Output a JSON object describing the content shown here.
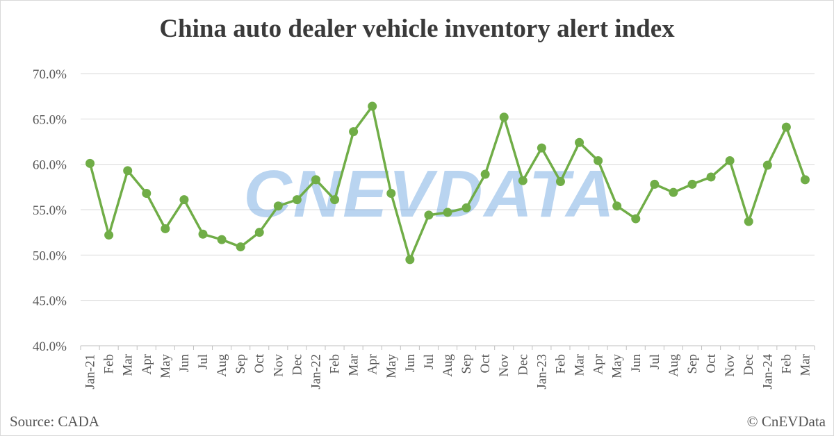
{
  "chart_data": {
    "type": "line",
    "title": "China auto dealer vehicle inventory alert index",
    "xlabel": "",
    "ylabel": "",
    "ylim": [
      40,
      70
    ],
    "y_ticks": [
      "70.0%",
      "65.0%",
      "60.0%",
      "55.0%",
      "50.0%",
      "45.0%",
      "40.0%"
    ],
    "y_tick_values": [
      70,
      65,
      60,
      55,
      50,
      45,
      40
    ],
    "grid": true,
    "legend": "none",
    "categories": [
      "Jan-21",
      "Feb",
      "Mar",
      "Apr",
      "May",
      "Jun",
      "Jul",
      "Aug",
      "Sep",
      "Oct",
      "Nov",
      "Dec",
      "Jan-22",
      "Feb",
      "Mar",
      "Apr",
      "May",
      "Jun",
      "Jul",
      "Aug",
      "Sep",
      "Oct",
      "Nov",
      "Dec",
      "Jan-23",
      "Feb",
      "Mar",
      "Apr",
      "May",
      "Jun",
      "Jul",
      "Aug",
      "Sep",
      "Oct",
      "Nov",
      "Dec",
      "Jan-24",
      "Feb",
      "Mar"
    ],
    "series": [
      {
        "values": [
          60.1,
          52.2,
          59.3,
          56.8,
          52.9,
          56.1,
          52.3,
          51.7,
          50.9,
          52.5,
          55.4,
          56.1,
          58.3,
          56.1,
          63.6,
          66.4,
          56.8,
          49.5,
          54.4,
          54.7,
          55.2,
          58.9,
          65.2,
          58.2,
          61.8,
          58.1,
          62.4,
          60.4,
          55.4,
          54.0,
          57.8,
          56.9,
          57.8,
          58.6,
          60.4,
          53.7,
          59.9,
          64.1,
          58.3
        ],
        "color": "#70ad47"
      }
    ]
  },
  "footer": {
    "source": "Source: CADA",
    "copyright": "© CnEVData"
  },
  "watermark": "CNEVDATA",
  "colors": {
    "line": "#70ad47",
    "grid": "#d9d9d9",
    "axis": "#bfbfbf",
    "watermark": "#4a90d9"
  }
}
